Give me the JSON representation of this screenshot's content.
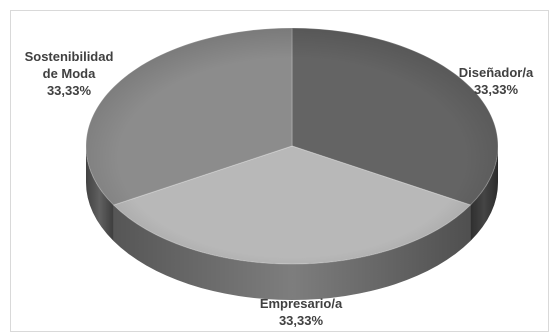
{
  "chart_data": {
    "type": "pie",
    "style": "3d",
    "title": "",
    "categories": [
      "Diseñador/a",
      "Empresario/a",
      "Sostenibilidad de Moda"
    ],
    "values": [
      33.33,
      33.33,
      33.33
    ],
    "percent_labels": [
      "33,33%",
      "33,33%",
      "33,33%"
    ],
    "label_lines": [
      [
        "Diseñador/a"
      ],
      [
        "Empresario/a"
      ],
      [
        "Sostenibilidad",
        "de Moda"
      ]
    ],
    "colors": [
      "#646464",
      "#b8b8b8",
      "#8c8c8c"
    ],
    "legend": "none"
  }
}
